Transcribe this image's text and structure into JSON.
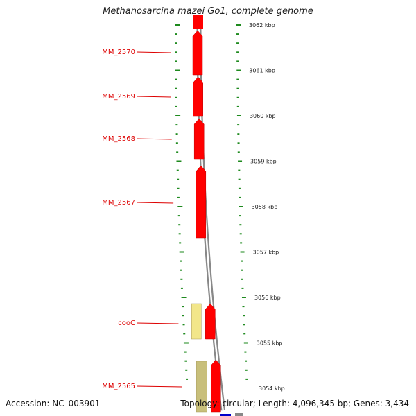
{
  "title": "Methanosarcina mazei Go1, complete genome",
  "footer": {
    "accession": "Accession: NC_003901",
    "topology": "Topology: circular; Length: 4,096,345 bp; Genes: 3,434"
  },
  "colors": {
    "backbone": "#888888",
    "cds_forward": "#ff0000",
    "cds_reverse_light": "#f2e68a",
    "cds_reverse_olive": "#c8bf7a",
    "ticks": "#1e8a1e",
    "labels": "#dd0000",
    "other_feature": "#0000cc"
  },
  "scale": {
    "unit": "kbp",
    "major_ticks": [
      {
        "kbp": 3062,
        "label": "3062 kbp"
      },
      {
        "kbp": 3061,
        "label": "3061 kbp"
      },
      {
        "kbp": 3060,
        "label": "3060 kbp"
      },
      {
        "kbp": 3059,
        "label": "3059 kbp"
      },
      {
        "kbp": 3058,
        "label": "3058 kbp"
      },
      {
        "kbp": 3057,
        "label": "3057 kbp"
      },
      {
        "kbp": 3056,
        "label": "3056 kbp"
      },
      {
        "kbp": 3055,
        "label": "3055 kbp"
      },
      {
        "kbp": 3054,
        "label": "3054 kbp"
      }
    ]
  },
  "genes": [
    {
      "name": "MM_2570",
      "strand": "+",
      "color": "red"
    },
    {
      "name": "MM_2569",
      "strand": "+",
      "color": "red"
    },
    {
      "name": "MM_2568",
      "strand": "+",
      "color": "red"
    },
    {
      "name": "MM_2567",
      "strand": "+",
      "color": "red"
    },
    {
      "name": "cooC",
      "strand": "+",
      "color": "red",
      "partner": "light"
    },
    {
      "name": "MM_2565",
      "strand": "+",
      "color": "red",
      "partner": "olive"
    }
  ]
}
